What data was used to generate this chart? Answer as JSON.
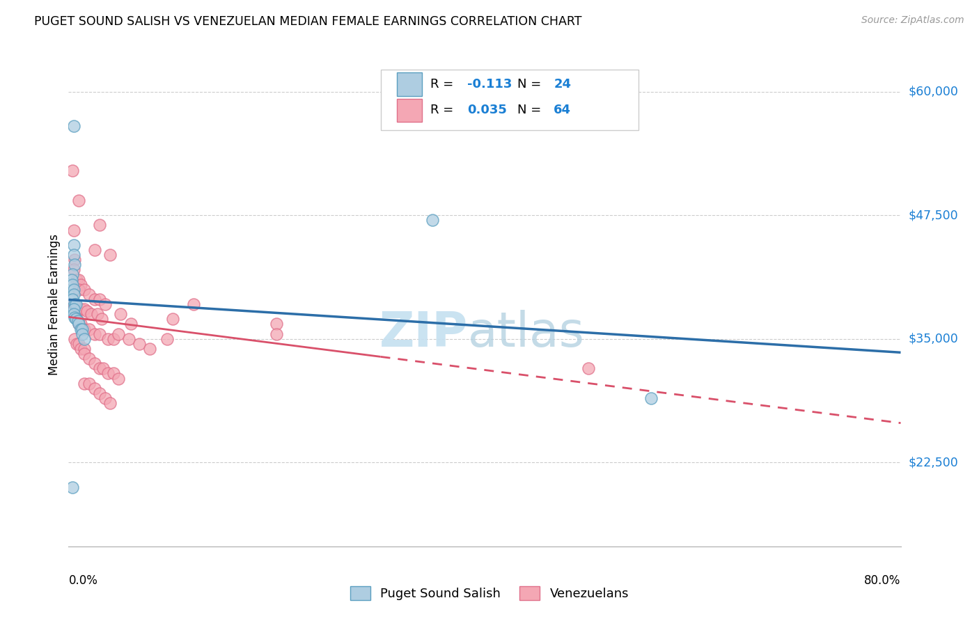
{
  "title": "PUGET SOUND SALISH VS VENEZUELAN MEDIAN FEMALE EARNINGS CORRELATION CHART",
  "source": "Source: ZipAtlas.com",
  "ylabel": "Median Female Earnings",
  "ytick_labels": [
    "$22,500",
    "$35,000",
    "$47,500",
    "$60,000"
  ],
  "ytick_values": [
    22500,
    35000,
    47500,
    60000
  ],
  "ymin": 14000,
  "ymax": 63000,
  "xmin": 0.0,
  "xmax": 0.8,
  "blue_fill": "#aecde1",
  "blue_edge": "#5b9fc0",
  "pink_fill": "#f4a7b4",
  "pink_edge": "#e0708a",
  "blue_line_color": "#2c6ea8",
  "pink_line_color": "#d9506a",
  "grid_color": "#cccccc",
  "puget_x": [
    0.005,
    0.005,
    0.005,
    0.006,
    0.004,
    0.003,
    0.004,
    0.005,
    0.005,
    0.004,
    0.006,
    0.007,
    0.005,
    0.005,
    0.006,
    0.007,
    0.009,
    0.01,
    0.012,
    0.013,
    0.013,
    0.015,
    0.35,
    0.56,
    0.004
  ],
  "puget_y": [
    56500,
    44500,
    43500,
    42500,
    41500,
    41000,
    40500,
    40000,
    39500,
    39000,
    38500,
    38500,
    38000,
    37500,
    37200,
    37000,
    36800,
    36500,
    36000,
    36000,
    35500,
    35000,
    47000,
    29000,
    20000
  ],
  "venz_x": [
    0.004,
    0.01,
    0.03,
    0.005,
    0.025,
    0.04,
    0.006,
    0.005,
    0.008,
    0.01,
    0.012,
    0.01,
    0.015,
    0.02,
    0.025,
    0.03,
    0.035,
    0.005,
    0.012,
    0.015,
    0.018,
    0.022,
    0.028,
    0.032,
    0.008,
    0.01,
    0.012,
    0.015,
    0.02,
    0.025,
    0.03,
    0.038,
    0.043,
    0.048,
    0.058,
    0.068,
    0.078,
    0.095,
    0.006,
    0.008,
    0.01,
    0.012,
    0.015,
    0.015,
    0.02,
    0.025,
    0.03,
    0.033,
    0.038,
    0.043,
    0.048,
    0.015,
    0.02,
    0.025,
    0.03,
    0.035,
    0.04,
    0.5,
    0.1,
    0.12,
    0.2,
    0.2,
    0.05,
    0.06
  ],
  "venz_y": [
    52000,
    49000,
    46500,
    46000,
    44000,
    43500,
    43000,
    42000,
    41000,
    41000,
    40500,
    40000,
    40000,
    39500,
    39000,
    39000,
    38500,
    38500,
    38000,
    38000,
    37800,
    37500,
    37500,
    37000,
    37000,
    36500,
    36500,
    36000,
    36000,
    35500,
    35500,
    35000,
    35000,
    35500,
    35000,
    34500,
    34000,
    35000,
    35000,
    34500,
    34500,
    34000,
    34000,
    33500,
    33000,
    32500,
    32000,
    32000,
    31500,
    31500,
    31000,
    30500,
    30500,
    30000,
    29500,
    29000,
    28500,
    32000,
    37000,
    38500,
    36500,
    35500,
    37500,
    36500
  ]
}
